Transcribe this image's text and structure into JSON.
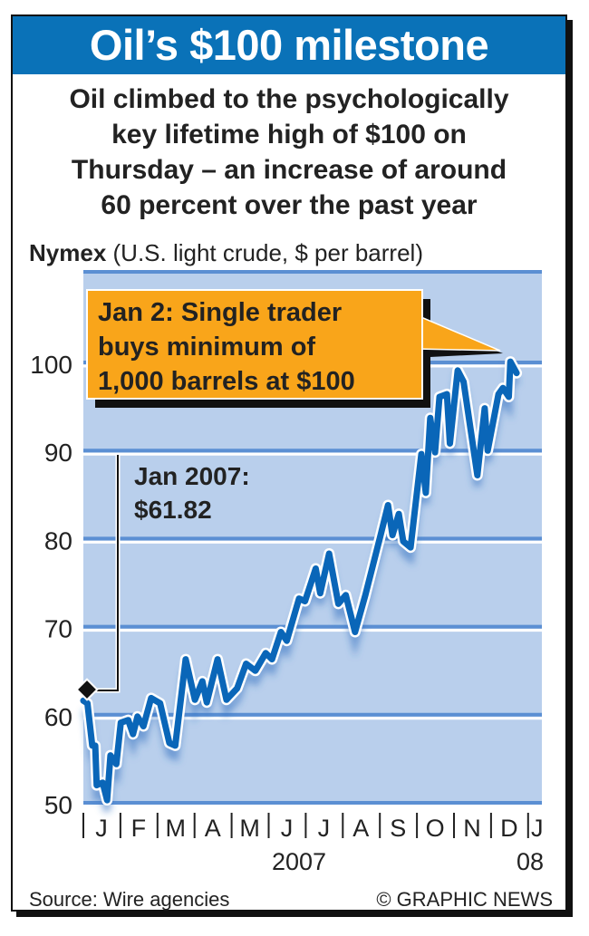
{
  "title": "Oil’s $100 milestone",
  "subtitle_lines": [
    "Oil climbed to the psychologically",
    "key lifetime high of $100 on",
    "Thursday – an increase of around",
    "60 percent over the past year"
  ],
  "unit_label": {
    "bold": "Nymex",
    "rest": " (U.S. light crude, $ per barrel)"
  },
  "source": "Source: Wire agencies",
  "credit": "© GRAPHIC NEWS",
  "colors": {
    "title_bg": "#0a72b8",
    "plot_bg": "#b9cfec",
    "line": "#0a66b8",
    "callout": "#f9a51a"
  },
  "chart_data": {
    "type": "line",
    "title": "Oil’s $100 milestone",
    "xlabel": "2007 / 08",
    "ylabel": "$ per barrel",
    "ylim": [
      50,
      100
    ],
    "yticks": [
      "50",
      "60",
      "70",
      "80",
      "90",
      "100"
    ],
    "ytick_values": [
      50,
      60,
      70,
      80,
      90,
      100
    ],
    "xticks": [
      "J",
      "F",
      "M",
      "A",
      "M",
      "J",
      "J",
      "A",
      "S",
      "O",
      "N",
      "D",
      "J"
    ],
    "year_labels": [
      "2007",
      "08"
    ],
    "x_unit": "months since Jan 1 2007",
    "grid": true,
    "series": [
      {
        "name": "Nymex light crude",
        "x": [
          0,
          0.11,
          0.24,
          0.32,
          0.36,
          0.52,
          0.64,
          0.73,
          0.89,
          1.01,
          1.21,
          1.34,
          1.46,
          1.62,
          1.83,
          2.07,
          2.32,
          2.48,
          2.76,
          3.01,
          3.21,
          3.33,
          3.62,
          3.86,
          4.15,
          4.39,
          4.64,
          4.92,
          5.09,
          5.33,
          5.49,
          5.82,
          5.98,
          6.27,
          6.39,
          6.63,
          6.88,
          7.08,
          7.33,
          7.61,
          8.02,
          8.22,
          8.34,
          8.51,
          8.63,
          8.83,
          9.12,
          9.24,
          9.36,
          9.49,
          9.61,
          9.81,
          9.89,
          10.1,
          10.26,
          10.63,
          10.83,
          10.91,
          11.2,
          11.32,
          11.48,
          11.52,
          11.69
        ],
        "y": [
          61.8,
          61.5,
          56.7,
          56.7,
          52.2,
          52.5,
          50.5,
          55.6,
          54.6,
          59.3,
          59.6,
          58.0,
          60.0,
          58.9,
          62.1,
          61.5,
          57.0,
          56.7,
          66.5,
          61.9,
          64.0,
          61.6,
          66.5,
          61.9,
          63.2,
          66.0,
          65.2,
          67.2,
          66.5,
          69.6,
          68.6,
          73.4,
          73.1,
          76.8,
          74.0,
          78.5,
          72.8,
          73.8,
          69.6,
          73.8,
          80.6,
          84.0,
          80.6,
          83.0,
          79.9,
          79.2,
          89.8,
          85.4,
          93.9,
          90.0,
          96.3,
          96.6,
          91.0,
          99.3,
          98.0,
          87.4,
          95.0,
          90.2,
          96.6,
          97.3,
          96.3,
          100.3,
          99.0
        ]
      }
    ],
    "annotations": [
      {
        "text_lines": [
          "Jan 2: Single trader",
          "buys minimum of",
          "1,000 barrels at $100"
        ],
        "target": "Jan 2 2008"
      },
      {
        "text_lines": [
          "Jan 2007:",
          "$61.82"
        ],
        "value": 61.82
      }
    ]
  }
}
